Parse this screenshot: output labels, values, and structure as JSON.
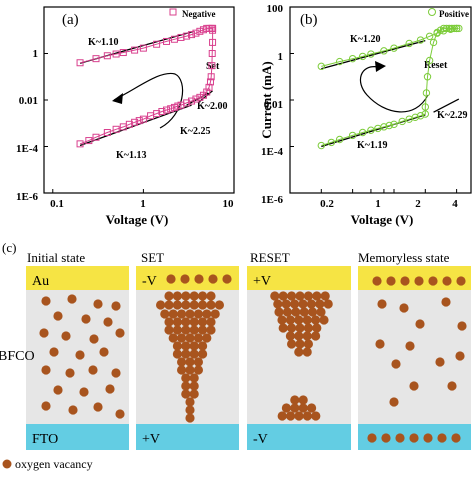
{
  "chart_data": [
    {
      "type": "line",
      "panel_label": "(a)",
      "xlabel": "Voltage (V)",
      "ylabel": "",
      "xscale": "log",
      "yscale": "log",
      "xlim": [
        0.08,
        10
      ],
      "ylim": [
        1e-06,
        100
      ],
      "x_ticks": [
        0.1,
        1,
        10
      ],
      "x_tick_labels": [
        "0.1",
        "1",
        "10"
      ],
      "y_ticks": [
        1e-06,
        0.0001,
        0.01,
        1
      ],
      "y_tick_labels": [
        "1E-6",
        "1E-4",
        "0.01",
        "1"
      ],
      "legend": {
        "label": "Negative",
        "marker": "open-square",
        "color": "#d9408e",
        "position": "top-right"
      },
      "series": [
        {
          "name": "Negative",
          "color": "#d9408e",
          "marker": "open-square",
          "x": [
            0.2,
            0.25,
            0.3,
            0.4,
            0.5,
            0.6,
            0.7,
            0.8,
            0.9,
            1.0,
            1.2,
            1.4,
            1.6,
            1.8,
            2.0,
            2.2,
            2.4,
            2.6,
            3.0,
            3.4,
            3.8,
            4.2,
            4.6,
            5.0,
            5.3,
            5.5,
            5.6,
            5.7,
            5.75,
            5.8,
            5.8,
            5.8,
            5.8,
            5.6,
            5.3,
            5.0,
            4.6,
            4.2,
            3.8,
            3.4,
            3.0,
            2.6,
            2.2,
            1.8,
            1.4,
            1.0,
            0.8,
            0.6,
            0.5,
            0.4,
            0.3,
            0.2
          ],
          "y": [
            0.00013,
            0.00018,
            0.00025,
            0.0004,
            0.00055,
            0.0007,
            0.0009,
            0.0011,
            0.0013,
            0.0015,
            0.0021,
            0.0026,
            0.0032,
            0.0037,
            0.0042,
            0.0048,
            0.0055,
            0.006,
            0.0075,
            0.009,
            0.011,
            0.013,
            0.016,
            0.022,
            0.035,
            0.06,
            0.1,
            0.3,
            1,
            3,
            10,
            12,
            12,
            12,
            12,
            12,
            10.5,
            9,
            7.5,
            6.5,
            5.6,
            4.9,
            4.1,
            3.3,
            2.5,
            1.7,
            1.4,
            1.1,
            0.95,
            0.8,
            0.6,
            0.4
          ]
        }
      ],
      "fit_lines": [
        {
          "label": "K~1.10",
          "x": [
            0.2,
            3.6
          ],
          "y": [
            0.38,
            9.0
          ]
        },
        {
          "label": "K~2.00",
          "x": [
            4.0,
            5.8
          ],
          "y": [
            0.0075,
            0.025
          ]
        },
        {
          "label": "K~2.25",
          "x": [
            3.0,
            5.2
          ],
          "y": [
            0.006,
            0.02
          ]
        },
        {
          "label": "K~1.13",
          "x": [
            0.2,
            3.4
          ],
          "y": [
            0.00011,
            0.006
          ]
        }
      ],
      "annotations": [
        {
          "text": "Set"
        }
      ]
    },
    {
      "type": "line",
      "panel_label": "(b)",
      "xlabel": "Voltage (V)",
      "ylabel": "Current (mA)",
      "xscale": "log",
      "yscale": "log",
      "xlim": [
        0.1,
        5.5
      ],
      "ylim": [
        1e-06,
        100
      ],
      "x_ticks": [
        0.2,
        0.4,
        0.6,
        0.8,
        1,
        2,
        4
      ],
      "x_tick_labels": [
        "0.2",
        "",
        "",
        "",
        "1",
        "2",
        "4"
      ],
      "y_ticks": [
        1e-06,
        0.0001,
        0.01,
        1,
        100
      ],
      "y_tick_labels": [
        "1E-6",
        "1E-4",
        "0.01",
        "1",
        "100"
      ],
      "legend": {
        "label": "Positive",
        "marker": "open-circle",
        "color": "#7ccc3a",
        "position": "top-right"
      },
      "series": [
        {
          "name": "Positive",
          "color": "#7ccc3a",
          "marker": "open-circle",
          "x": [
            0.2,
            0.25,
            0.3,
            0.4,
            0.5,
            0.6,
            0.7,
            0.8,
            0.9,
            1.0,
            1.2,
            1.4,
            1.6,
            1.8,
            2.0,
            2.0,
            2.05,
            2.1,
            2.2,
            2.4,
            2.6,
            2.8,
            3.0,
            3.2,
            3.4,
            3.6,
            3.8,
            4.0,
            4.2,
            4.0,
            3.5,
            3.0,
            2.6,
            2.2,
            1.8,
            1.4,
            1.0,
            0.8,
            0.6,
            0.5,
            0.4,
            0.3,
            0.2
          ],
          "y": [
            0.00011,
            0.00015,
            0.0002,
            0.0003,
            0.0004,
            0.0005,
            0.0006,
            0.0007,
            0.0008,
            0.0009,
            0.0012,
            0.0015,
            0.0018,
            0.0021,
            0.0025,
            0.005,
            0.02,
            0.1,
            0.5,
            3.0,
            8,
            10,
            12,
            12,
            12,
            12,
            12,
            12,
            12,
            12,
            11,
            9.5,
            7.5,
            5.5,
            3.8,
            2.7,
            1.7,
            1.3,
            0.95,
            0.75,
            0.6,
            0.45,
            0.28
          ]
        }
      ],
      "fit_lines": [
        {
          "label": "K~1.20",
          "x": [
            0.2,
            2.0
          ],
          "y": [
            0.22,
            3.6
          ]
        },
        {
          "label": "K~2.29",
          "x": [
            2.4,
            4.2
          ],
          "y": [
            0.003,
            0.011
          ]
        },
        {
          "label": "K~1.19",
          "x": [
            0.2,
            2.0
          ],
          "y": [
            0.0001,
            0.0023
          ]
        }
      ],
      "annotations": [
        {
          "text": "Reset"
        }
      ]
    }
  ],
  "panel_c": {
    "label": "(c)",
    "titles": [
      "Initial state",
      "SET",
      "RESET",
      "Memoryless state"
    ],
    "top_layer": "Au",
    "middle_layer": "BFCO",
    "bottom_layer": "FTO",
    "set_top_voltage": "-V",
    "set_bottom_voltage": "+V",
    "reset_top_voltage": "+V",
    "reset_bottom_voltage": "-V",
    "legend_label": "oxygen vacancy",
    "colors": {
      "gold": "#f6e444",
      "cyan": "#63cde3",
      "middle": "#e6e6e6",
      "vacancy": "#a8541e"
    }
  }
}
